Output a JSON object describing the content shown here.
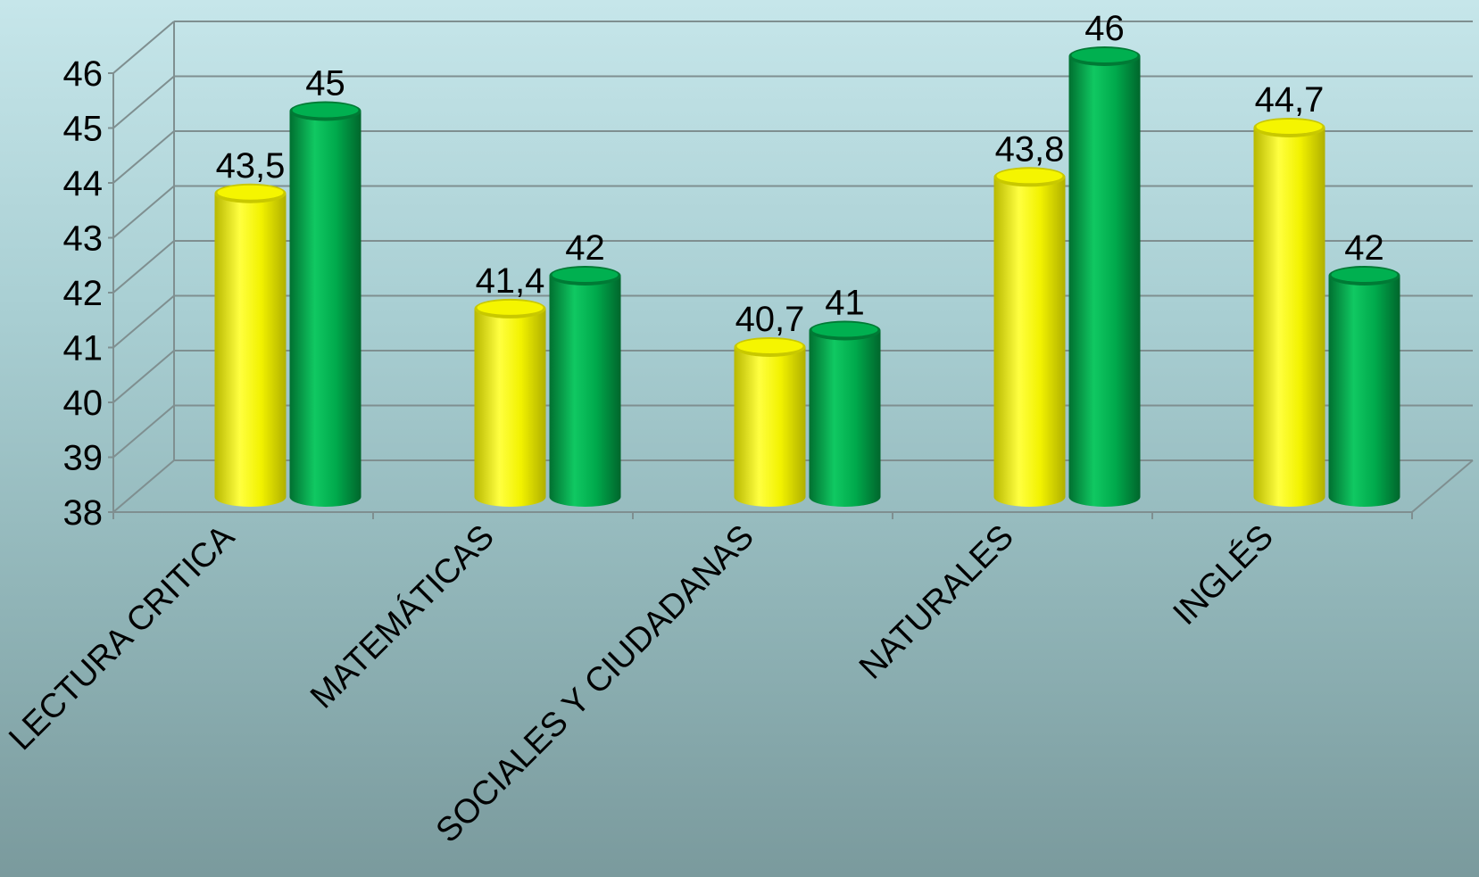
{
  "chart_data": {
    "type": "bar",
    "title": "",
    "xlabel": "",
    "ylabel": "",
    "ylim": [
      38,
      46
    ],
    "yticks": [
      "38",
      "39",
      "40",
      "41",
      "42",
      "43",
      "44",
      "45",
      "46"
    ],
    "grid": true,
    "style": "3d-cylinder",
    "categories": [
      "LECTURA CRITICA",
      "MATEMÁTICAS",
      "SOCIALES Y CIUDADANAS",
      "NATURALES",
      "INGLÉS"
    ],
    "series": [
      {
        "values": [
          43.5,
          41.4,
          40.7,
          43.8,
          44.7
        ],
        "labels": [
          "43,5",
          "41,4",
          "40,7",
          "43,8",
          "44,7"
        ],
        "color": "#f5f500",
        "color_dark": "#c8c800",
        "color_light": "#ffff66"
      },
      {
        "values": [
          45,
          42,
          41,
          46,
          42
        ],
        "labels": [
          "45",
          "42",
          "41",
          "46",
          "42"
        ],
        "color": "#00b050",
        "color_dark": "#007a35",
        "color_light": "#1fd36a"
      }
    ]
  }
}
